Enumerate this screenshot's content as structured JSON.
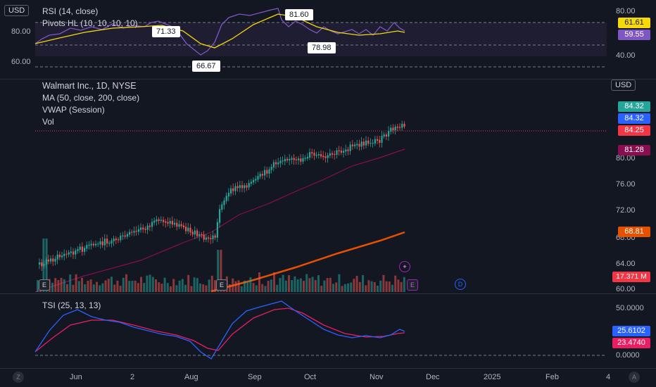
{
  "currency": "USD",
  "rsi_panel": {
    "title": "RSI (14, close)",
    "subtitle": "Pivots HL (10, 10, 10, 10)",
    "left_ticks": [
      "80.00",
      "60.00"
    ],
    "right_ticks": [
      "80.00",
      "40.00"
    ],
    "callouts": [
      "71.33",
      "66.67",
      "81.60",
      "78.98"
    ],
    "value_rsi": "59.55",
    "value_ma": "61.61",
    "colors": {
      "rsi": "#7e57c2",
      "ma": "#f5d90a"
    }
  },
  "main_panel": {
    "symbol_title": "Walmart Inc., 1D, NYSE",
    "indicators": [
      "MA (50, close, 200, close)",
      "VWAP (Session)",
      "Vol"
    ],
    "unit_button": "USD",
    "axis_ticks": [
      "80.00",
      "76.00",
      "72.00",
      "68.00",
      "64.00",
      "60.00"
    ],
    "tags": [
      {
        "value": "84.32",
        "color": "#26a69a"
      },
      {
        "value": "84.32",
        "color": "#2962ff"
      },
      {
        "value": "84.25",
        "color": "#f23645"
      },
      {
        "value": "81.28",
        "color": "#880e4f"
      },
      {
        "value": "68.81",
        "color": "#e65100"
      },
      {
        "value": "17.371 M",
        "color": "#f23645"
      }
    ],
    "events": [
      {
        "label": "E",
        "kind": "earnings"
      },
      {
        "label": "E",
        "kind": "earnings"
      },
      {
        "label": "E",
        "kind": "earnings"
      },
      {
        "label": "D",
        "kind": "dividend"
      },
      {
        "label": "✦",
        "kind": "ideas"
      }
    ],
    "colors": {
      "up": "#26a69a",
      "down": "#ef5350",
      "ma50": "#880e4f",
      "ma200": "#e65100"
    }
  },
  "tsi_panel": {
    "title": "TSI (25, 13, 13)",
    "axis_ticks": [
      "50.0000",
      "0.0000"
    ],
    "value_tsi": "25.6102",
    "value_signal": "23.4740",
    "colors": {
      "tsi": "#2962ff",
      "signal": "#e91e63"
    }
  },
  "time_axis": {
    "labels": [
      "Jun",
      "2",
      "Aug",
      "Sep",
      "Oct",
      "Nov",
      "Dec",
      "2025",
      "Feb",
      "4"
    ]
  },
  "corner_buttons": {
    "left": "Z",
    "right": "A"
  }
}
